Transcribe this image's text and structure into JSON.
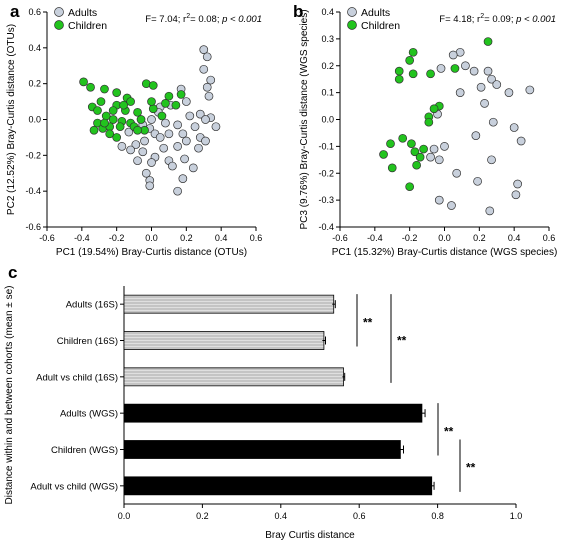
{
  "colors": {
    "adults": "#c8d0dc",
    "children": "#22c31e",
    "bar16s": "#c4c4c4",
    "barwgs": "#000000"
  },
  "chart_data": [
    {
      "panel": "a",
      "type": "scatter",
      "xlabel": "PC1 (19.54%) Bray-Curtis distance (OTUs)",
      "ylabel": "PC2 (12.52%) Bray-Curtis distance (OTUs)",
      "xlim": [
        -0.6,
        0.6
      ],
      "ylim": [
        -0.6,
        0.6
      ],
      "xticks": [
        "-0.6",
        "-0.4",
        "-0.2",
        "0.0",
        "0.2",
        "0.4",
        "0.6"
      ],
      "yticks": [
        "-0.6",
        "-0.4",
        "-0.2",
        "0.0",
        "0.2",
        "0.4",
        "0.6"
      ],
      "stat": {
        "prefix": "F= 7.04; r",
        "sup": "2",
        "mid": "= 0.08; ",
        "p": "p < 0.001"
      },
      "legend": [
        "Adults",
        "Children"
      ],
      "series": [
        {
          "name": "Adults",
          "points": [
            [
              0.3,
              0.39
            ],
            [
              0.32,
              0.35
            ],
            [
              0.17,
              0.17
            ],
            [
              0.3,
              0.28
            ],
            [
              0.34,
              0.22
            ],
            [
              0.32,
              0.18
            ],
            [
              0.33,
              0.13
            ],
            [
              0.2,
              0.1
            ],
            [
              0.11,
              0.08
            ],
            [
              0.05,
              0.07
            ],
            [
              0.04,
              0.04
            ],
            [
              0.28,
              0.03
            ],
            [
              0.22,
              0.02
            ],
            [
              0.34,
              0.01
            ],
            [
              0.37,
              -0.04
            ],
            [
              0.31,
              0.0
            ],
            [
              0.25,
              -0.04
            ],
            [
              0.15,
              -0.03
            ],
            [
              0.08,
              -0.02
            ],
            [
              -0.05,
              -0.03
            ],
            [
              -0.01,
              -0.05
            ],
            [
              0.02,
              -0.08
            ],
            [
              0.05,
              -0.1
            ],
            [
              0.1,
              -0.08
            ],
            [
              0.18,
              -0.08
            ],
            [
              0.28,
              -0.1
            ],
            [
              0.31,
              -0.12
            ],
            [
              0.27,
              -0.16
            ],
            [
              0.2,
              -0.12
            ],
            [
              0.15,
              -0.15
            ],
            [
              0.07,
              -0.16
            ],
            [
              -0.04,
              -0.12
            ],
            [
              -0.09,
              -0.14
            ],
            [
              -0.12,
              -0.17
            ],
            [
              -0.05,
              -0.18
            ],
            [
              0.02,
              -0.21
            ],
            [
              -0.08,
              -0.23
            ],
            [
              0.0,
              -0.24
            ],
            [
              0.1,
              -0.23
            ],
            [
              0.19,
              -0.22
            ],
            [
              0.12,
              -0.26
            ],
            [
              0.24,
              -0.27
            ],
            [
              -0.03,
              -0.3
            ],
            [
              0.18,
              -0.33
            ],
            [
              -0.01,
              -0.34
            ],
            [
              -0.01,
              -0.37
            ],
            [
              0.15,
              -0.4
            ],
            [
              -0.17,
              -0.15
            ],
            [
              -0.13,
              -0.07
            ],
            [
              0.0,
              0.0
            ]
          ]
        },
        {
          "name": "Children",
          "points": [
            [
              -0.39,
              0.21
            ],
            [
              -0.35,
              0.18
            ],
            [
              -0.27,
              0.17
            ],
            [
              -0.2,
              0.15
            ],
            [
              -0.14,
              0.12
            ],
            [
              -0.03,
              0.2
            ],
            [
              0.01,
              0.19
            ],
            [
              0.17,
              0.14
            ],
            [
              0.14,
              0.08
            ],
            [
              -0.12,
              0.1
            ],
            [
              -0.2,
              0.08
            ],
            [
              -0.29,
              0.1
            ],
            [
              -0.34,
              0.07
            ],
            [
              -0.22,
              0.05
            ],
            [
              -0.15,
              0.05
            ],
            [
              -0.08,
              0.04
            ],
            [
              0.01,
              0.06
            ],
            [
              0.08,
              0.09
            ],
            [
              -0.31,
              0.05
            ],
            [
              -0.26,
              0.02
            ],
            [
              -0.22,
              0.0
            ],
            [
              -0.17,
              -0.01
            ],
            [
              -0.12,
              -0.02
            ],
            [
              -0.06,
              0.0
            ],
            [
              -0.31,
              -0.02
            ],
            [
              -0.28,
              -0.05
            ],
            [
              -0.24,
              -0.04
            ],
            [
              -0.18,
              -0.04
            ],
            [
              -0.1,
              -0.04
            ],
            [
              -0.04,
              -0.06
            ],
            [
              -0.33,
              -0.06
            ],
            [
              -0.27,
              -0.02
            ],
            [
              -0.24,
              -0.08
            ],
            [
              -0.2,
              -0.1
            ],
            [
              -0.08,
              -0.06
            ],
            [
              0.0,
              0.1
            ],
            [
              0.06,
              0.02
            ],
            [
              0.1,
              0.13
            ],
            [
              -0.16,
              0.08
            ]
          ]
        }
      ]
    },
    {
      "panel": "b",
      "type": "scatter",
      "xlabel": "PC1 (15.32%) Bray-Curtis distance (WGS species)",
      "ylabel": "PC3 (9.76%) Bray-Curtis distance (WGS species)",
      "xlim": [
        -0.6,
        0.6
      ],
      "ylim": [
        -0.4,
        0.4
      ],
      "xticks": [
        "-0.6",
        "-0.4",
        "-0.2",
        "0.0",
        "0.2",
        "0.4",
        "0.6"
      ],
      "yticks": [
        "-0.4",
        "-0.3",
        "-0.2",
        "-0.1",
        "0.0",
        "0.1",
        "0.2",
        "0.3",
        "0.4"
      ],
      "stat": {
        "prefix": "F= 4.18; r",
        "sup": "2",
        "mid": "= 0.09; ",
        "p": "p < 0.001"
      },
      "legend": [
        "Adults",
        "Children"
      ],
      "series": [
        {
          "name": "Adults",
          "points": [
            [
              0.09,
              0.25
            ],
            [
              0.05,
              0.24
            ],
            [
              0.12,
              0.2
            ],
            [
              -0.02,
              0.19
            ],
            [
              0.17,
              0.18
            ],
            [
              0.25,
              0.18
            ],
            [
              0.27,
              0.15
            ],
            [
              0.3,
              0.13
            ],
            [
              0.37,
              0.1
            ],
            [
              0.49,
              0.11
            ],
            [
              0.21,
              0.12
            ],
            [
              0.23,
              0.06
            ],
            [
              0.09,
              0.1
            ],
            [
              -0.04,
              0.02
            ],
            [
              0.28,
              -0.01
            ],
            [
              0.4,
              -0.03
            ],
            [
              0.44,
              -0.08
            ],
            [
              0.18,
              -0.06
            ],
            [
              -0.06,
              -0.11
            ],
            [
              0.27,
              -0.15
            ],
            [
              0.07,
              -0.2
            ],
            [
              0.42,
              -0.24
            ],
            [
              0.41,
              -0.28
            ],
            [
              0.19,
              -0.23
            ],
            [
              -0.03,
              -0.3
            ],
            [
              0.04,
              -0.32
            ],
            [
              0.26,
              -0.34
            ],
            [
              -0.08,
              -0.14
            ],
            [
              -0.03,
              -0.15
            ],
            [
              0.0,
              -0.1
            ]
          ]
        },
        {
          "name": "Children",
          "points": [
            [
              -0.18,
              0.25
            ],
            [
              -0.2,
              0.22
            ],
            [
              0.25,
              0.29
            ],
            [
              -0.26,
              0.18
            ],
            [
              -0.18,
              0.17
            ],
            [
              -0.08,
              0.17
            ],
            [
              -0.26,
              0.15
            ],
            [
              0.06,
              0.19
            ],
            [
              -0.03,
              0.05
            ],
            [
              -0.06,
              0.04
            ],
            [
              -0.09,
              0.01
            ],
            [
              -0.24,
              -0.07
            ],
            [
              -0.31,
              -0.09
            ],
            [
              -0.35,
              -0.13
            ],
            [
              -0.19,
              -0.09
            ],
            [
              -0.17,
              -0.12
            ],
            [
              -0.14,
              -0.14
            ],
            [
              -0.16,
              -0.17
            ],
            [
              -0.3,
              -0.18
            ],
            [
              -0.09,
              -0.01
            ],
            [
              -0.2,
              -0.25
            ],
            [
              -0.12,
              -0.11
            ]
          ]
        }
      ]
    },
    {
      "panel": "c",
      "type": "bar",
      "orientation": "horizontal",
      "xlabel": "Bray Curtis distance",
      "ylabel": "Distance within and between cohorts (mean ± se)",
      "xlim": [
        0.0,
        1.0
      ],
      "xticks": [
        "0.0",
        "0.2",
        "0.4",
        "0.6",
        "0.8",
        "1.0"
      ],
      "categories": [
        "Adults (16S)",
        "Children (16S)",
        "Adult vs child (16S)",
        "Adults (WGS)",
        "Children (WGS)",
        "Adult vs child (WGS)"
      ],
      "values": [
        0.535,
        0.51,
        0.56,
        0.76,
        0.705,
        0.785
      ],
      "errors": [
        0.004,
        0.004,
        0.003,
        0.008,
        0.008,
        0.006
      ],
      "groups": [
        "16S",
        "16S",
        "16S",
        "WGS",
        "WGS",
        "WGS"
      ],
      "significance": [
        {
          "from": 0,
          "to": 1,
          "label": "**"
        },
        {
          "from": 0,
          "to": 2,
          "label": "**"
        },
        {
          "from": 3,
          "to": 4,
          "label": "**"
        },
        {
          "from": 4,
          "to": 5,
          "label": "**"
        }
      ]
    }
  ]
}
